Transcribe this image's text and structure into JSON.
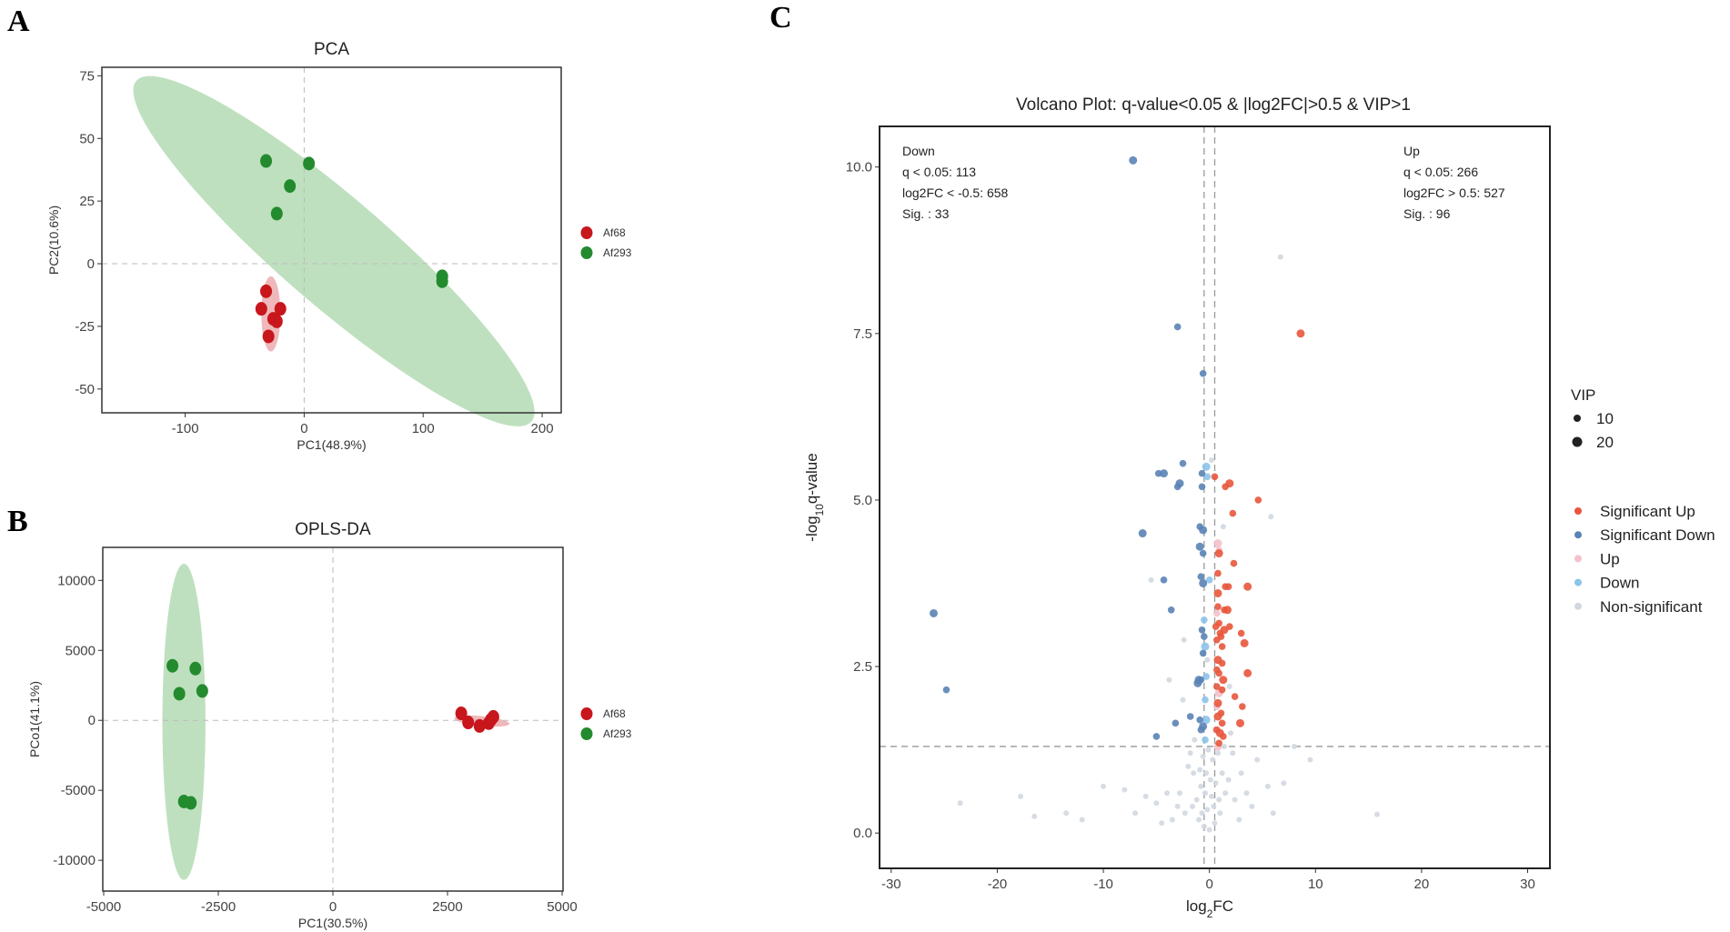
{
  "panel_letters": [
    "A",
    "B",
    "C"
  ],
  "chart_data": [
    {
      "type": "scatter",
      "title": "PCA",
      "xlabel": "PC1(48.9%)",
      "ylabel": "PC2(10.6%)",
      "xlim": [
        -170,
        216
      ],
      "ylim": [
        -59.5,
        78.4
      ],
      "xticks": [
        -100,
        0,
        100,
        200
      ],
      "yticks": [
        -50,
        -25,
        0,
        25,
        50,
        75
      ],
      "reference_lines": {
        "x": 0,
        "y": 0
      },
      "legend": {
        "placement": "right",
        "entries": [
          {
            "label": "Af68",
            "color": "#c8161d"
          },
          {
            "label": "Af293",
            "color": "#238b2e"
          }
        ]
      },
      "series": [
        {
          "name": "Af68",
          "color": "#c8161d",
          "ellipse_color": "#e9a0a4",
          "ellipse": {
            "center": [
              -28,
              -20
            ],
            "major_end": [
              -28,
              -35
            ],
            "minor_end": [
              -20,
              -20
            ]
          },
          "points": [
            [
              -32,
              -11
            ],
            [
              -36,
              -18
            ],
            [
              -20,
              -18
            ],
            [
              -26,
              -22
            ],
            [
              -23,
              -23
            ],
            [
              -30,
              -29
            ]
          ]
        },
        {
          "name": "Af293",
          "color": "#238b2e",
          "ellipse_color": "#a9d5a9",
          "ellipse": {
            "center": [
              25,
              5
            ],
            "major_end": [
              -141,
              73
            ],
            "minor_end": [
              34,
              26
            ]
          },
          "points": [
            [
              -32,
              41
            ],
            [
              4,
              40
            ],
            [
              -12,
              31
            ],
            [
              -23,
              20
            ],
            [
              116,
              -5
            ],
            [
              116,
              -7
            ]
          ]
        }
      ]
    },
    {
      "type": "scatter",
      "title": "OPLS-DA",
      "xlabel": "PC1(30.5%)",
      "ylabel": "PCo1(41.1%)",
      "xlim": [
        -5020,
        5020
      ],
      "ylim": [
        -12200,
        12360
      ],
      "xticks": [
        -5000,
        -2500,
        0,
        2500,
        5000
      ],
      "yticks": [
        -10000,
        -5000,
        0,
        5000,
        10000
      ],
      "reference_lines": {
        "x": 0,
        "y": 0
      },
      "legend": {
        "placement": "right",
        "entries": [
          {
            "label": "Af68",
            "color": "#c8161d"
          },
          {
            "label": "Af293",
            "color": "#238b2e"
          }
        ]
      },
      "series": [
        {
          "name": "Af68",
          "color": "#c8161d",
          "ellipse_color": "#e9a0a4",
          "ellipse": {
            "center": [
              3250,
              -50
            ],
            "major_end": [
              3850,
              -250
            ],
            "minor_end": [
              3250,
              300
            ]
          },
          "points": [
            [
              2800,
              500
            ],
            [
              2950,
              -150
            ],
            [
              3200,
              -400
            ],
            [
              3400,
              -200
            ],
            [
              3500,
              250
            ],
            [
              3450,
              50
            ]
          ]
        },
        {
          "name": "Af293",
          "color": "#238b2e",
          "ellipse_color": "#a9d5a9",
          "ellipse": {
            "center": [
              -3250,
              -100
            ],
            "major_end": [
              -3250,
              11200
            ],
            "minor_end": [
              -2780,
              -100
            ]
          },
          "points": [
            [
              -3500,
              3900
            ],
            [
              -3000,
              3700
            ],
            [
              -3350,
              1900
            ],
            [
              -2850,
              2100
            ],
            [
              -3250,
              -5800
            ],
            [
              -3100,
              -5900
            ]
          ]
        }
      ]
    },
    {
      "type": "scatter",
      "title": "Volcano Plot: q-value<0.05 & |log2FC|>0.5 & VIP>1",
      "xlabel": "log2FC",
      "ylabel": "-log10q-value",
      "xlim": [
        -31.1,
        32.1
      ],
      "ylim": [
        -0.53,
        10.61
      ],
      "xticks": [
        -30,
        -20,
        -10,
        0,
        10,
        20,
        30
      ],
      "yticks": [
        0.0,
        2.5,
        5.0,
        7.5,
        10.0
      ],
      "threshold_lines": {
        "x": [
          -0.5,
          0.5
        ],
        "y": 1.3
      },
      "annotations": {
        "down": [
          "Down",
          "q < 0.05: 113",
          "log2FC < -0.5: 658",
          "Sig. : 33"
        ],
        "up": [
          "Up",
          "q < 0.05: 266",
          "log2FC > 0.5: 527",
          "Sig. : 96"
        ]
      },
      "size_legend": {
        "title": "VIP",
        "entries": [
          "10",
          "20"
        ]
      },
      "categories": [
        {
          "key": "sig_up",
          "label": "Significant Up",
          "color": "#e8563c"
        },
        {
          "key": "sig_down",
          "label": "Significant Down",
          "color": "#5a83b5"
        },
        {
          "key": "up",
          "label": "Up",
          "color": "#f3c1cb"
        },
        {
          "key": "down",
          "label": "Down",
          "color": "#8cc3ea"
        },
        {
          "key": "ns",
          "label": "Non-significant",
          "color": "#d2d8e0"
        }
      ],
      "points": {
        "ns": [
          [
            6.7,
            8.65
          ],
          [
            5.8,
            4.75
          ],
          [
            9.5,
            1.1
          ],
          [
            15.8,
            0.28
          ],
          [
            -23.5,
            0.45
          ],
          [
            -17.8,
            0.55
          ],
          [
            -16.5,
            0.25
          ],
          [
            -13.5,
            0.3
          ],
          [
            -10,
            0.7
          ],
          [
            -8,
            0.65
          ],
          [
            -6,
            0.55
          ],
          [
            -5,
            0.45
          ],
          [
            -4,
            0.6
          ],
          [
            -3,
            0.4
          ],
          [
            3,
            0.9
          ],
          [
            4.5,
            1.1
          ],
          [
            5.5,
            0.7
          ],
          [
            7,
            0.75
          ],
          [
            8,
            1.3
          ],
          [
            6,
            0.3
          ],
          [
            4,
            0.4
          ],
          [
            2.8,
            0.2
          ],
          [
            -2,
            1.0
          ],
          [
            -1.5,
            0.9
          ],
          [
            2,
            1.5
          ],
          [
            -1,
            0.2
          ],
          [
            -0.5,
            0.1
          ],
          [
            0,
            0.05
          ],
          [
            0.5,
            0.15
          ],
          [
            1,
            0.3
          ],
          [
            -1.2,
            0.5
          ],
          [
            -0.8,
            0.7
          ],
          [
            -0.3,
            0.9
          ],
          [
            0.3,
            1.1
          ],
          [
            0.8,
            1.2
          ],
          [
            1.2,
            0.9
          ],
          [
            1.5,
            0.6
          ],
          [
            -1.6,
            0.4
          ],
          [
            -2.3,
            0.3
          ],
          [
            -2.8,
            0.6
          ],
          [
            -0.2,
            0.35
          ],
          [
            0.2,
            0.55
          ],
          [
            0.6,
            0.75
          ],
          [
            -0.6,
            1.15
          ],
          [
            -0.1,
            1.25
          ],
          [
            0.4,
            0.4
          ],
          [
            -0.9,
            0.95
          ],
          [
            1.8,
            0.8
          ],
          [
            2.4,
            0.5
          ],
          [
            -3.5,
            0.2
          ],
          [
            -4.5,
            0.15
          ],
          [
            -7,
            0.3
          ],
          [
            -12,
            0.2
          ],
          [
            3.5,
            0.6
          ],
          [
            2.2,
            1.2
          ],
          [
            -1.8,
            1.2
          ],
          [
            -0.4,
            0.6
          ],
          [
            0.1,
            0.8
          ],
          [
            0.9,
            0.5
          ],
          [
            -0.7,
            0.3
          ],
          [
            1.4,
            1.3
          ],
          [
            -1.4,
            1.4
          ],
          [
            -3.8,
            2.3
          ],
          [
            -2.4,
            2.9
          ],
          [
            -5.5,
            3.8
          ],
          [
            0.2,
            5.6
          ],
          [
            1.3,
            4.6
          ],
          [
            -0.2,
            2.6
          ],
          [
            1.9,
            2.2
          ],
          [
            -2.5,
            2.0
          ]
        ],
        "down": [
          [
            -0.3,
            5.5
          ],
          [
            -0.2,
            5.35
          ],
          [
            -0.5,
            3.2
          ],
          [
            -0.4,
            2.8
          ],
          [
            -0.3,
            2.35
          ],
          [
            -0.4,
            2.0
          ],
          [
            -0.3,
            1.7
          ],
          [
            -0.4,
            1.4
          ],
          [
            0.0,
            3.8
          ]
        ],
        "up": [
          [
            0.8,
            4.35
          ],
          [
            0.9,
            4.25
          ],
          [
            0.7,
            3.3
          ],
          [
            0.9,
            2.1
          ],
          [
            0.7,
            1.9
          ],
          [
            0.6,
            1.55
          ],
          [
            0.8,
            1.3
          ]
        ],
        "sig_down": [
          [
            -7.2,
            10.1
          ],
          [
            -3.0,
            7.6
          ],
          [
            -0.6,
            6.9
          ],
          [
            -26,
            3.3
          ],
          [
            -24.8,
            2.15
          ],
          [
            -4.8,
            5.4
          ],
          [
            -4.3,
            5.4
          ],
          [
            -2.5,
            5.55
          ],
          [
            -3.0,
            5.2
          ],
          [
            -2.8,
            5.25
          ],
          [
            -0.7,
            5.4
          ],
          [
            -0.7,
            5.2
          ],
          [
            -6.3,
            4.5
          ],
          [
            -4.3,
            3.8
          ],
          [
            -0.9,
            4.6
          ],
          [
            -0.6,
            4.55
          ],
          [
            -0.6,
            4.2
          ],
          [
            -0.8,
            3.85
          ],
          [
            -0.6,
            3.75
          ],
          [
            -3.6,
            3.35
          ],
          [
            -0.8,
            2.3
          ],
          [
            -1.0,
            2.3
          ],
          [
            -1.8,
            1.75
          ],
          [
            -0.9,
            1.7
          ],
          [
            -0.6,
            1.6
          ],
          [
            -3.2,
            1.65
          ],
          [
            -0.7,
            3.05
          ],
          [
            -0.9,
            4.3
          ],
          [
            -5.0,
            1.45
          ],
          [
            -0.6,
            2.7
          ],
          [
            -1.1,
            2.25
          ],
          [
            -0.5,
            2.95
          ],
          [
            -0.8,
            1.55
          ]
        ],
        "sig_up": [
          [
            8.6,
            7.5
          ],
          [
            0.5,
            5.35
          ],
          [
            1.5,
            5.2
          ],
          [
            1.9,
            5.25
          ],
          [
            4.6,
            5.0
          ],
          [
            2.2,
            4.8
          ],
          [
            0.9,
            4.2
          ],
          [
            2.3,
            4.05
          ],
          [
            0.8,
            3.9
          ],
          [
            0.8,
            3.6
          ],
          [
            1.5,
            3.7
          ],
          [
            1.8,
            3.7
          ],
          [
            3.6,
            3.7
          ],
          [
            0.8,
            3.4
          ],
          [
            1.4,
            3.35
          ],
          [
            1.7,
            3.35
          ],
          [
            0.6,
            3.1
          ],
          [
            1.0,
            3.0
          ],
          [
            1.4,
            3.05
          ],
          [
            1.9,
            3.1
          ],
          [
            3.0,
            3.0
          ],
          [
            3.3,
            2.85
          ],
          [
            0.7,
            2.9
          ],
          [
            1.2,
            2.8
          ],
          [
            0.8,
            2.6
          ],
          [
            1.2,
            2.55
          ],
          [
            0.9,
            2.4
          ],
          [
            3.6,
            2.4
          ],
          [
            0.7,
            2.2
          ],
          [
            1.2,
            2.15
          ],
          [
            0.8,
            1.95
          ],
          [
            2.4,
            2.05
          ],
          [
            3.1,
            1.9
          ],
          [
            0.8,
            1.75
          ],
          [
            1.1,
            1.8
          ],
          [
            0.7,
            1.55
          ],
          [
            1.0,
            1.5
          ],
          [
            0.9,
            1.35
          ],
          [
            1.3,
            1.45
          ],
          [
            2.9,
            1.65
          ],
          [
            1.1,
            2.95
          ],
          [
            0.7,
            2.45
          ],
          [
            1.3,
            2.3
          ],
          [
            0.9,
            3.15
          ],
          [
            1.2,
            1.65
          ]
        ]
      }
    }
  ]
}
